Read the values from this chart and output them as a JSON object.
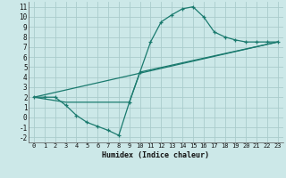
{
  "xlabel": "Humidex (Indice chaleur)",
  "bg_color": "#cce8e8",
  "grid_color": "#aacccc",
  "line_color": "#1a7a6e",
  "xlim": [
    -0.5,
    23.5
  ],
  "ylim": [
    -2.5,
    11.5
  ],
  "xticks": [
    0,
    1,
    2,
    3,
    4,
    5,
    6,
    7,
    8,
    9,
    10,
    11,
    12,
    13,
    14,
    15,
    16,
    17,
    18,
    19,
    20,
    21,
    22,
    23
  ],
  "yticks": [
    -2,
    -1,
    0,
    1,
    2,
    3,
    4,
    5,
    6,
    7,
    8,
    9,
    10,
    11
  ],
  "curve1_x": [
    0,
    1,
    2,
    3,
    4,
    5,
    6,
    7,
    8,
    9,
    10,
    11,
    12,
    13,
    14,
    15,
    16,
    17,
    18,
    19,
    20,
    21,
    22,
    23
  ],
  "curve1_y": [
    2.0,
    2.0,
    2.0,
    1.2,
    0.2,
    -0.5,
    -0.9,
    -1.3,
    -1.8,
    1.5,
    4.5,
    7.5,
    9.5,
    10.2,
    10.8,
    11.0,
    10.0,
    8.5,
    8.0,
    7.7,
    7.5,
    7.5,
    7.5,
    7.5
  ],
  "curve2_x": [
    0,
    3,
    9,
    10,
    23
  ],
  "curve2_y": [
    2.0,
    1.5,
    1.5,
    4.5,
    7.5
  ],
  "curve3_x": [
    0,
    23
  ],
  "curve3_y": [
    2.0,
    7.5
  ]
}
